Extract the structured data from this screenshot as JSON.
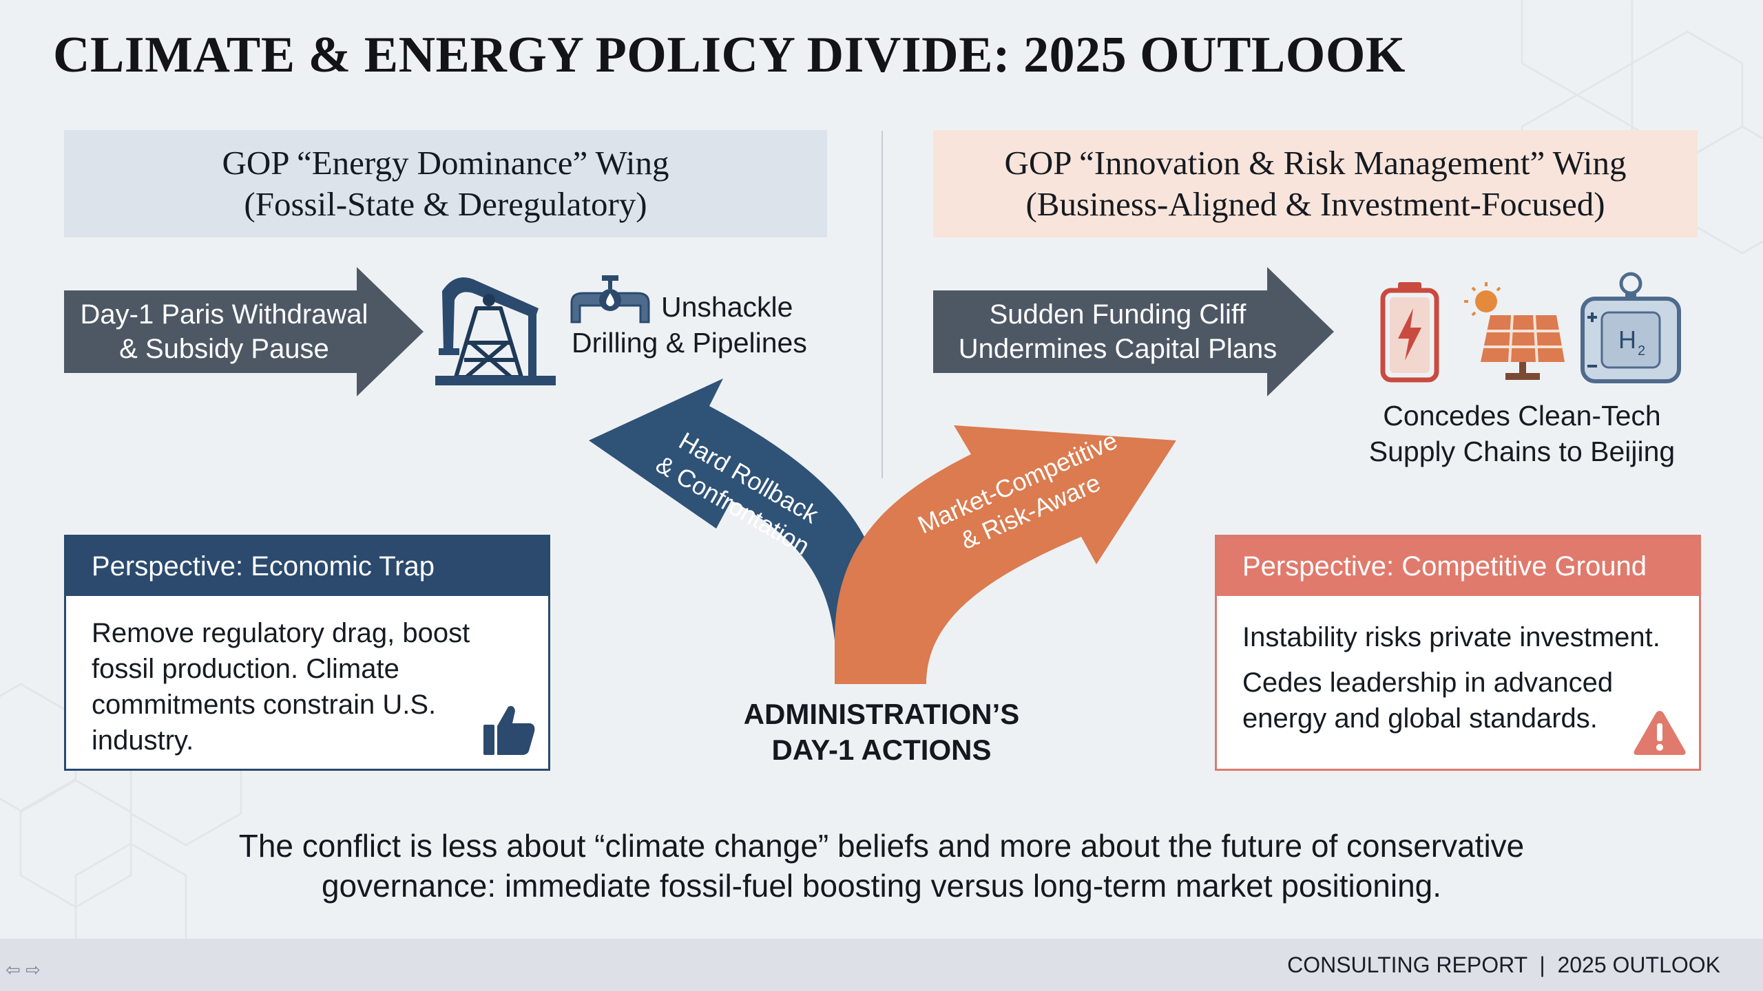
{
  "title": "CLIMATE & ENERGY POLICY DIVIDE: 2025 OUTLOOK",
  "left_wing": {
    "header_line1": "GOP “Energy Dominance” Wing",
    "header_line2": "(Fossil-State & Deregulatory)",
    "arrow_line1": "Day-1 Paris Withdrawal",
    "arrow_line2": "& Subsidy Pause",
    "side_line1": "Unshackle",
    "side_line2": "Drilling & Pipelines",
    "perspective_title": "Perspective: Economic Trap",
    "perspective_lines": [
      "Remove regulatory drag, boost",
      "fossil production. Climate",
      "commitments constrain U.S.",
      "industry."
    ]
  },
  "right_wing": {
    "header_line1": "GOP “Innovation & Risk Management” Wing",
    "header_line2": "(Business-Aligned & Investment-Focused)",
    "arrow_line1": "Sudden Funding Cliff",
    "arrow_line2": "Undermines Capital Plans",
    "side_line1": "Concedes Clean-Tech",
    "side_line2": "Supply Chains to Beijing",
    "perspective_title": "Perspective: Competitive Ground",
    "perspective_line1": "Instability risks private investment.",
    "perspective_lines2": [
      "Cedes leadership in advanced",
      "energy and global standards."
    ],
    "h2_label": "H",
    "h2_sub": "2"
  },
  "center": {
    "left_branch_line1": "Hard Rollback",
    "left_branch_line2": "& Confrontation",
    "right_branch_line1": "Market-Competitive",
    "right_branch_line2": "& Risk-Aware",
    "label_line1": "ADMINISTRATION’S",
    "label_line2": "DAY-1 ACTIONS"
  },
  "summary_line1": "The conflict is less about “climate change” beliefs and more about the future of conservative",
  "summary_line2": "governance: immediate fossil-fuel boosting versus long-term market positioning.",
  "footer": "CONSULTING REPORT  |  2025 OUTLOOK",
  "nav_arrows": "⇦ ⇨",
  "colors": {
    "navy": "#2b4a6e",
    "slate": "#4e5865",
    "orange": "#db7b4f",
    "coral": "#e07a6c",
    "left_header_bg": "#dde3eb",
    "right_header_bg": "#f8e4da"
  }
}
